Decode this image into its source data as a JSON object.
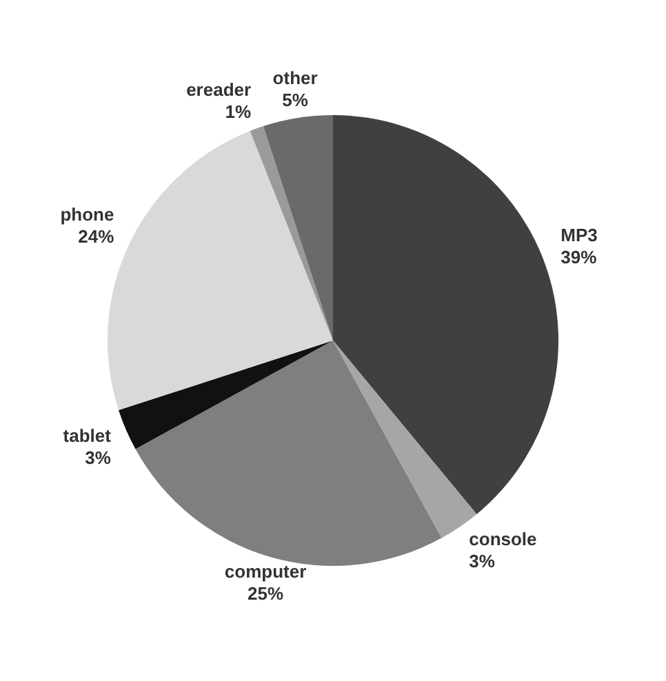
{
  "chart_data": {
    "type": "pie",
    "categories": [
      "MP3",
      "console",
      "computer",
      "tablet",
      "phone",
      "ereader",
      "other"
    ],
    "values": [
      39,
      3,
      25,
      3,
      24,
      1,
      5
    ],
    "value_labels": [
      "39%",
      "3%",
      "25%",
      "3%",
      "24%",
      "1%",
      "5%"
    ],
    "colors": [
      "#404040",
      "#a6a6a6",
      "#7f7f7f",
      "#111111",
      "#d9d9d9",
      "#9a9a9a",
      "#6a6a6a"
    ],
    "legend": false
  }
}
